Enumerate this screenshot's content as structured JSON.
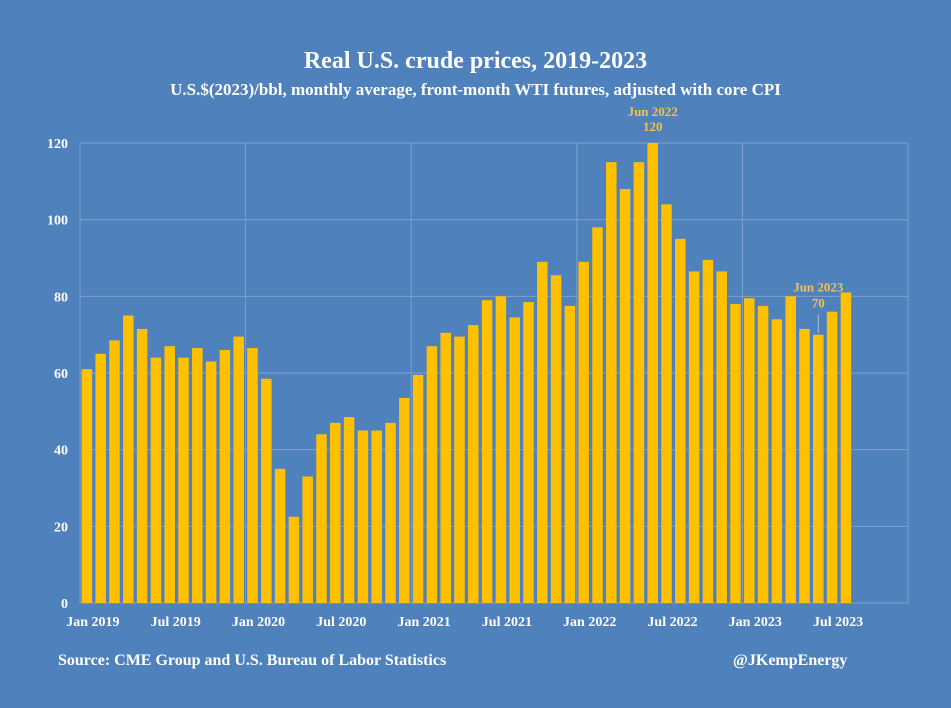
{
  "chart_data": {
    "type": "bar",
    "title": "Real U.S. crude prices, 2019-2023",
    "subtitle": "U.S.$(2023)/bbl, monthly average, front-month WTI futures, adjusted with core CPI",
    "xlabel": "",
    "ylabel": "",
    "ylim": [
      0,
      120
    ],
    "yticks": [
      0,
      20,
      40,
      60,
      80,
      100,
      120
    ],
    "xtick_labels": [
      "Jan 2019",
      "Jul 2019",
      "Jan 2020",
      "Jul 2020",
      "Jan 2021",
      "Jul 2021",
      "Jan 2022",
      "Jul 2022",
      "Jan 2023",
      "Jul 2023"
    ],
    "x_slots": 60,
    "grid": true,
    "values": [
      61,
      65,
      68.5,
      75,
      71.5,
      64,
      67,
      64,
      66.5,
      63,
      66,
      69.5,
      66.5,
      58.5,
      35,
      22.5,
      33,
      44,
      47,
      48.5,
      45,
      45,
      47,
      53.5,
      59.5,
      67,
      70.5,
      69.5,
      72.5,
      79,
      80,
      74.5,
      78.5,
      89,
      85.5,
      77.5,
      89,
      98,
      115,
      108,
      115,
      120,
      104,
      95,
      86.5,
      89.5,
      86.5,
      78,
      79.5,
      77.5,
      74,
      80,
      71.5,
      70,
      76,
      81
    ],
    "annotations": [
      {
        "label": "Jun 2022",
        "value_label": "120",
        "index": 41
      },
      {
        "label": "Jun 2023",
        "value_label": "70",
        "index": 53
      }
    ],
    "colors": {
      "background": "#4f81bd",
      "bar": "#ffc000",
      "annotation": "#f2c14e",
      "grid": "#7f9fcc"
    }
  },
  "footer": {
    "source": "Source: CME Group and U.S. Bureau of Labor Statistics",
    "handle": "@JKempEnergy"
  }
}
